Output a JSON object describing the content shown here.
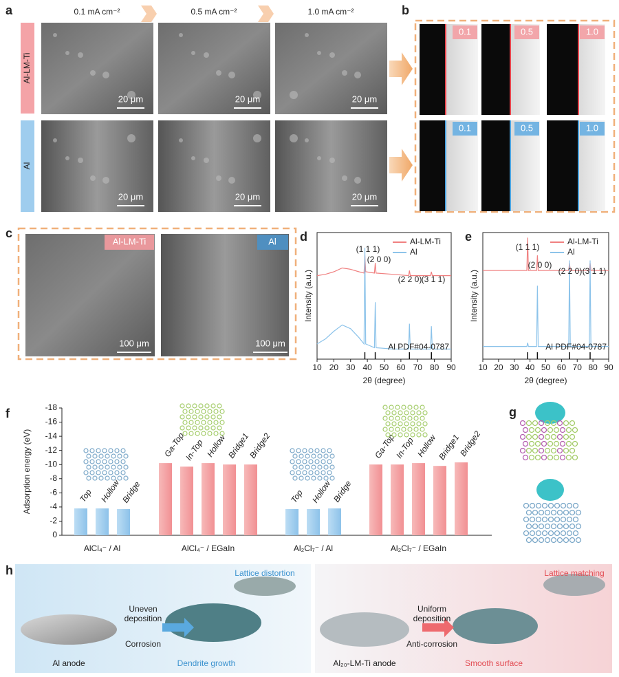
{
  "panel_labels": [
    "a",
    "b",
    "c",
    "d",
    "e",
    "f",
    "g",
    "h"
  ],
  "a": {
    "columns": [
      "0.1 mA cm⁻²",
      "0.5 mA cm⁻²",
      "1.0 mA cm⁻²"
    ],
    "rows": [
      "Al-LM-Ti",
      "Al"
    ],
    "scale_bar": "20 μm"
  },
  "b": {
    "labels": [
      "0.1",
      "0.5",
      "1.0"
    ]
  },
  "c": {
    "labels": [
      "Al-LM-Ti",
      "Al"
    ],
    "scale_bar": "100 μm"
  },
  "chart_data": [
    {
      "type": "line",
      "x_label": "2θ (degree)",
      "y_label": "Intensity (a.u.)",
      "xlim": [
        10,
        90
      ],
      "xticks": [
        10,
        20,
        30,
        40,
        50,
        60,
        70,
        80,
        90
      ],
      "ylim": [
        0,
        100
      ],
      "annotations": [
        "(1 1 1)",
        "(2 0 0)",
        "(2 2 0)",
        "(3 1 1)"
      ],
      "reference_label": "Al PDF#04-0787",
      "reference_peaks": [
        38.5,
        44.7,
        65.1,
        78.2
      ],
      "x": [
        10,
        15,
        20,
        25,
        30,
        35,
        38,
        38.5,
        39,
        44.2,
        44.7,
        45.2,
        55,
        64.6,
        65.1,
        65.6,
        77.7,
        78.2,
        78.7,
        85,
        90
      ],
      "series": [
        {
          "name": "Al-LM-Ti",
          "color": "#f08080",
          "values": [
            66,
            67,
            69,
            72,
            71,
            69,
            68,
            82,
            69,
            68,
            76,
            68,
            67,
            66,
            70,
            66,
            66,
            69,
            66,
            66,
            66
          ]
        },
        {
          "name": "Al",
          "color": "#8cc3ea",
          "values": [
            12,
            16,
            22,
            27,
            24,
            17,
            12,
            88,
            12,
            9,
            45,
            9,
            8,
            8,
            28,
            8,
            8,
            26,
            8,
            8,
            8
          ]
        }
      ]
    },
    {
      "type": "line",
      "x_label": "2θ (degree)",
      "y_label": "Intensity (a.u.)",
      "xlim": [
        10,
        90
      ],
      "xticks": [
        10,
        20,
        30,
        40,
        50,
        60,
        70,
        80,
        90
      ],
      "ylim": [
        0,
        100
      ],
      "annotations": [
        "(1 1 1)",
        "(2 0 0)",
        "(2 2 0)",
        "(3 1 1)"
      ],
      "reference_label": "Al PDF#04-0787",
      "reference_peaks": [
        38.5,
        44.7,
        65.1,
        78.2
      ],
      "x": [
        10,
        15,
        20,
        25,
        30,
        35,
        38,
        38.5,
        39,
        44.2,
        44.7,
        45.2,
        55,
        64.6,
        65.1,
        65.6,
        77.7,
        78.2,
        78.7,
        85,
        90
      ],
      "series": [
        {
          "name": "Al-LM-Ti",
          "color": "#f08080",
          "values": [
            70,
            70,
            70,
            70,
            70,
            70,
            70,
            96,
            70,
            70,
            82,
            70,
            70,
            70,
            76,
            70,
            70,
            76,
            70,
            70,
            70
          ]
        },
        {
          "name": "Al",
          "color": "#8cc3ea",
          "values": [
            10,
            10,
            10,
            10,
            10,
            10,
            10,
            13,
            10,
            10,
            58,
            10,
            10,
            10,
            78,
            10,
            10,
            78,
            10,
            10,
            10
          ]
        }
      ]
    },
    {
      "type": "bar",
      "y_label": "Adsorption energy (eV)",
      "ylim": [
        0,
        -18
      ],
      "yticks": [
        0,
        -2,
        -4,
        -6,
        -8,
        -10,
        -12,
        -14,
        -16,
        -18
      ],
      "groups": [
        {
          "name": "AlCl₄⁻ / Al",
          "color": "#a9d4f2",
          "categories": [
            "Top",
            "Hollow",
            "Bridge"
          ],
          "values": [
            -3.8,
            -3.8,
            -3.7
          ]
        },
        {
          "name": "AlCl₄⁻ / EGaIn",
          "color": "#f6a9a9",
          "categories": [
            "Ga-Top",
            "In-Top",
            "Hollow",
            "Bridge1",
            "Bridge2"
          ],
          "values": [
            -10.2,
            -9.7,
            -10.2,
            -10.0,
            -10.0
          ]
        },
        {
          "name": "Al₂Cl₇⁻ / Al",
          "color": "#a9d4f2",
          "categories": [
            "Top",
            "Hollow",
            "Bridge"
          ],
          "values": [
            -3.7,
            -3.7,
            -3.8
          ]
        },
        {
          "name": "Al₂Cl₇⁻ / EGaIn",
          "color": "#f6a9a9",
          "categories": [
            "Ga-Top",
            "In-Top",
            "Hollow",
            "Bridge1",
            "Bridge2"
          ],
          "values": [
            -10.0,
            -10.0,
            -10.2,
            -9.8,
            -10.3
          ]
        }
      ]
    }
  ],
  "h": {
    "left": {
      "callout": "Lattice distortion",
      "arrow_top": "Uneven deposition",
      "arrow_bottom": "Corrosion",
      "start": "Al anode",
      "end": "Dendrite growth"
    },
    "right": {
      "callout": "Lattice matching",
      "arrow_top": "Uniform deposition",
      "arrow_bottom": "Anti-corrosion",
      "start": "Al₂₀-LM-Ti anode",
      "end": "Smooth surface"
    }
  }
}
